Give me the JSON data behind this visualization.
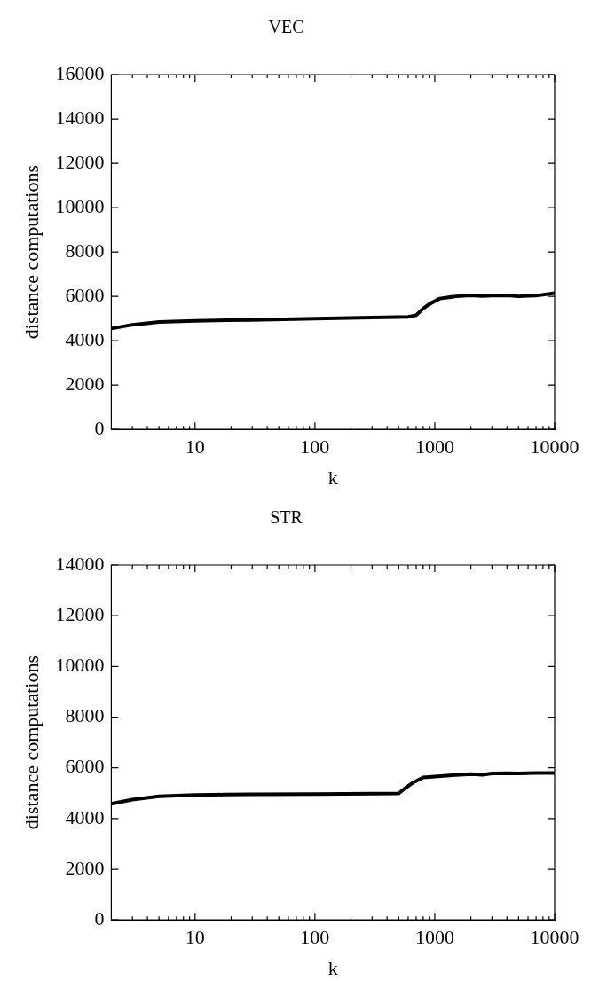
{
  "chart_data": [
    {
      "type": "line",
      "title": "VEC",
      "xlabel": "k",
      "ylabel": "distance computations",
      "log": "x",
      "marker": "none",
      "series": [
        {
          "color": "#000000",
          "x": [
            2,
            3,
            5,
            10,
            30,
            100,
            300,
            600,
            700,
            800,
            900,
            1100,
            1500,
            2000,
            2500,
            3000,
            4000,
            5000,
            6000,
            7000,
            10000
          ],
          "values": [
            4550,
            4720,
            4850,
            4900,
            4940,
            5000,
            5050,
            5080,
            5150,
            5450,
            5650,
            5900,
            6000,
            6040,
            6010,
            6030,
            6040,
            6000,
            6020,
            6030,
            6150
          ]
        }
      ],
      "xlim": [
        2,
        10000
      ],
      "ylim": [
        0,
        16000
      ],
      "xticks": [
        {
          "value": 3,
          "label": null
        },
        {
          "value": 4,
          "label": null
        },
        {
          "value": 5,
          "label": null
        },
        {
          "value": 6,
          "label": null
        },
        {
          "value": 7,
          "label": null
        },
        {
          "value": 8,
          "label": null
        },
        {
          "value": 9,
          "label": null
        },
        10,
        {
          "value": 20,
          "label": null
        },
        {
          "value": 30,
          "label": null
        },
        {
          "value": 40,
          "label": null
        },
        {
          "value": 50,
          "label": null
        },
        {
          "value": 60,
          "label": null
        },
        {
          "value": 70,
          "label": null
        },
        {
          "value": 80,
          "label": null
        },
        {
          "value": 90,
          "label": null
        },
        100,
        {
          "value": 200,
          "label": null
        },
        {
          "value": 300,
          "label": null
        },
        {
          "value": 400,
          "label": null
        },
        {
          "value": 500,
          "label": null
        },
        {
          "value": 600,
          "label": null
        },
        {
          "value": 700,
          "label": null
        },
        {
          "value": 800,
          "label": null
        },
        {
          "value": 900,
          "label": null
        },
        1000,
        {
          "value": 2000,
          "label": null
        },
        {
          "value": 3000,
          "label": null
        },
        {
          "value": 4000,
          "label": null
        },
        {
          "value": 5000,
          "label": null
        },
        {
          "value": 6000,
          "label": null
        },
        {
          "value": 7000,
          "label": null
        },
        {
          "value": 8000,
          "label": null
        },
        {
          "value": 9000,
          "label": null
        },
        10000
      ],
      "yticks": [
        0,
        2000,
        4000,
        6000,
        8000,
        10000,
        12000,
        14000,
        16000
      ]
    },
    {
      "type": "line",
      "title": "STR",
      "xlabel": "k",
      "ylabel": "distance computations",
      "log": "x",
      "marker": "none",
      "series": [
        {
          "color": "#000000",
          "x": [
            2,
            3,
            5,
            10,
            30,
            100,
            300,
            500,
            550,
            650,
            800,
            1000,
            1500,
            2000,
            2500,
            3000,
            4000,
            5000,
            7000,
            10000
          ],
          "values": [
            4580,
            4750,
            4880,
            4930,
            4960,
            4970,
            4980,
            4990,
            5150,
            5400,
            5620,
            5660,
            5720,
            5750,
            5730,
            5780,
            5790,
            5780,
            5800,
            5800
          ]
        }
      ],
      "xlim": [
        2,
        10000
      ],
      "ylim": [
        0,
        14000
      ],
      "xticks": [
        {
          "value": 3,
          "label": null
        },
        {
          "value": 4,
          "label": null
        },
        {
          "value": 5,
          "label": null
        },
        {
          "value": 6,
          "label": null
        },
        {
          "value": 7,
          "label": null
        },
        {
          "value": 8,
          "label": null
        },
        {
          "value": 9,
          "label": null
        },
        10,
        {
          "value": 20,
          "label": null
        },
        {
          "value": 30,
          "label": null
        },
        {
          "value": 40,
          "label": null
        },
        {
          "value": 50,
          "label": null
        },
        {
          "value": 60,
          "label": null
        },
        {
          "value": 70,
          "label": null
        },
        {
          "value": 80,
          "label": null
        },
        {
          "value": 90,
          "label": null
        },
        100,
        {
          "value": 200,
          "label": null
        },
        {
          "value": 300,
          "label": null
        },
        {
          "value": 400,
          "label": null
        },
        {
          "value": 500,
          "label": null
        },
        {
          "value": 600,
          "label": null
        },
        {
          "value": 700,
          "label": null
        },
        {
          "value": 800,
          "label": null
        },
        {
          "value": 900,
          "label": null
        },
        1000,
        {
          "value": 2000,
          "label": null
        },
        {
          "value": 3000,
          "label": null
        },
        {
          "value": 4000,
          "label": null
        },
        {
          "value": 5000,
          "label": null
        },
        {
          "value": 6000,
          "label": null
        },
        {
          "value": 7000,
          "label": null
        },
        {
          "value": 8000,
          "label": null
        },
        {
          "value": 9000,
          "label": null
        },
        10000
      ],
      "yticks": [
        0,
        2000,
        4000,
        6000,
        8000,
        10000,
        12000,
        14000
      ]
    }
  ]
}
